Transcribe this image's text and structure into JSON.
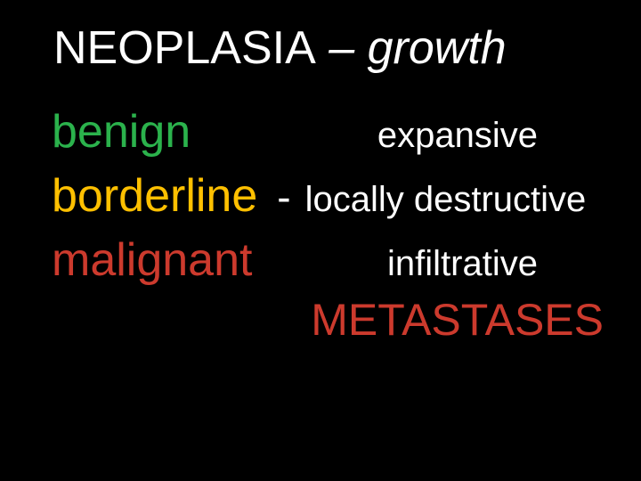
{
  "colors": {
    "background": "#000000",
    "title_main": "#ffffff",
    "title_sub": "#ffffff",
    "benign": "#2bb24c",
    "borderline": "#ffc000",
    "malignant": "#cc3a2d",
    "description": "#ffffff",
    "separator": "#ffffff",
    "metastases": "#cc3a2d"
  },
  "fontsizes": {
    "title": 52,
    "term": 52,
    "desc": 40,
    "sep": 46,
    "final": 50
  },
  "title": {
    "main": "NEOPLASIA",
    "sub": " – growth"
  },
  "rows": [
    {
      "term": "benign",
      "term_color": "#2bb24c",
      "desc": "expansive"
    },
    {
      "term": "borderline",
      "term_color": "#ffc000",
      "sep": "-",
      "desc": "locally destructive"
    },
    {
      "term": "malignant",
      "term_color": "#cc3a2d",
      "desc": "infiltrative"
    }
  ],
  "final": {
    "text": "METASTASES",
    "color": "#cc3a2d"
  }
}
